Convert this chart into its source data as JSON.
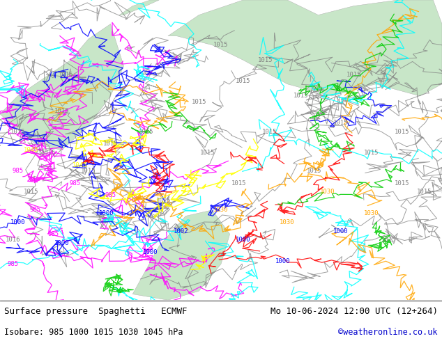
{
  "title_left": "Surface pressure  Spaghetti   ECMWF",
  "title_right": "Mo 10-06-2024 12:00 UTC (12+264)",
  "subtitle_left": "Isobare: 985 1000 1015 1030 1045 hPa",
  "subtitle_right": "©weatheronline.co.uk",
  "subtitle_right_color": "#0000cc",
  "bg_color": "#ffffff",
  "label_color": "#000000",
  "label_fontsize": 9,
  "subtitle_fontsize": 8.5,
  "fig_width": 6.34,
  "fig_height": 4.9,
  "dpi": 100,
  "isobar_colors": {
    "985": "#ff00ff",
    "1000": "#0000ff",
    "1015": "#808080",
    "1030": "#ffa500",
    "1045": "#ffff00"
  },
  "land_color": "#c8e6c8",
  "sea_color": "#d0d8e8",
  "footer_bg": "#ffffff"
}
